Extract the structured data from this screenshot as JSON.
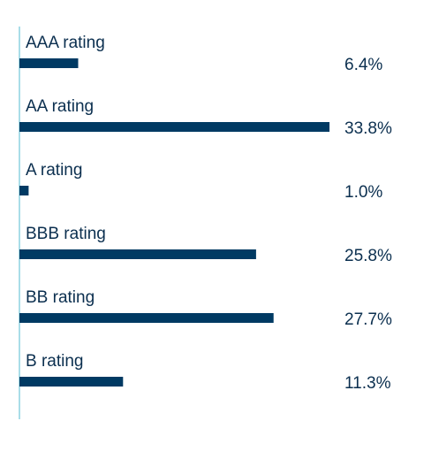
{
  "chart_data": {
    "type": "bar",
    "orientation": "horizontal",
    "categories": [
      "AAA rating",
      "AA rating",
      "A rating",
      "BBB rating",
      "BB rating",
      "B rating"
    ],
    "values": [
      6.4,
      33.8,
      1.0,
      25.8,
      27.7,
      11.3
    ],
    "value_labels": [
      "6.4%",
      "33.8%",
      "1.0%",
      "25.8%",
      "27.7%",
      "11.3%"
    ],
    "xlim": [
      0,
      33.8
    ],
    "grid": false,
    "legend": "none"
  },
  "colors": {
    "bar": "#003a63",
    "label_text": "#0b2f4f",
    "axis_line": "#a9dde8"
  }
}
